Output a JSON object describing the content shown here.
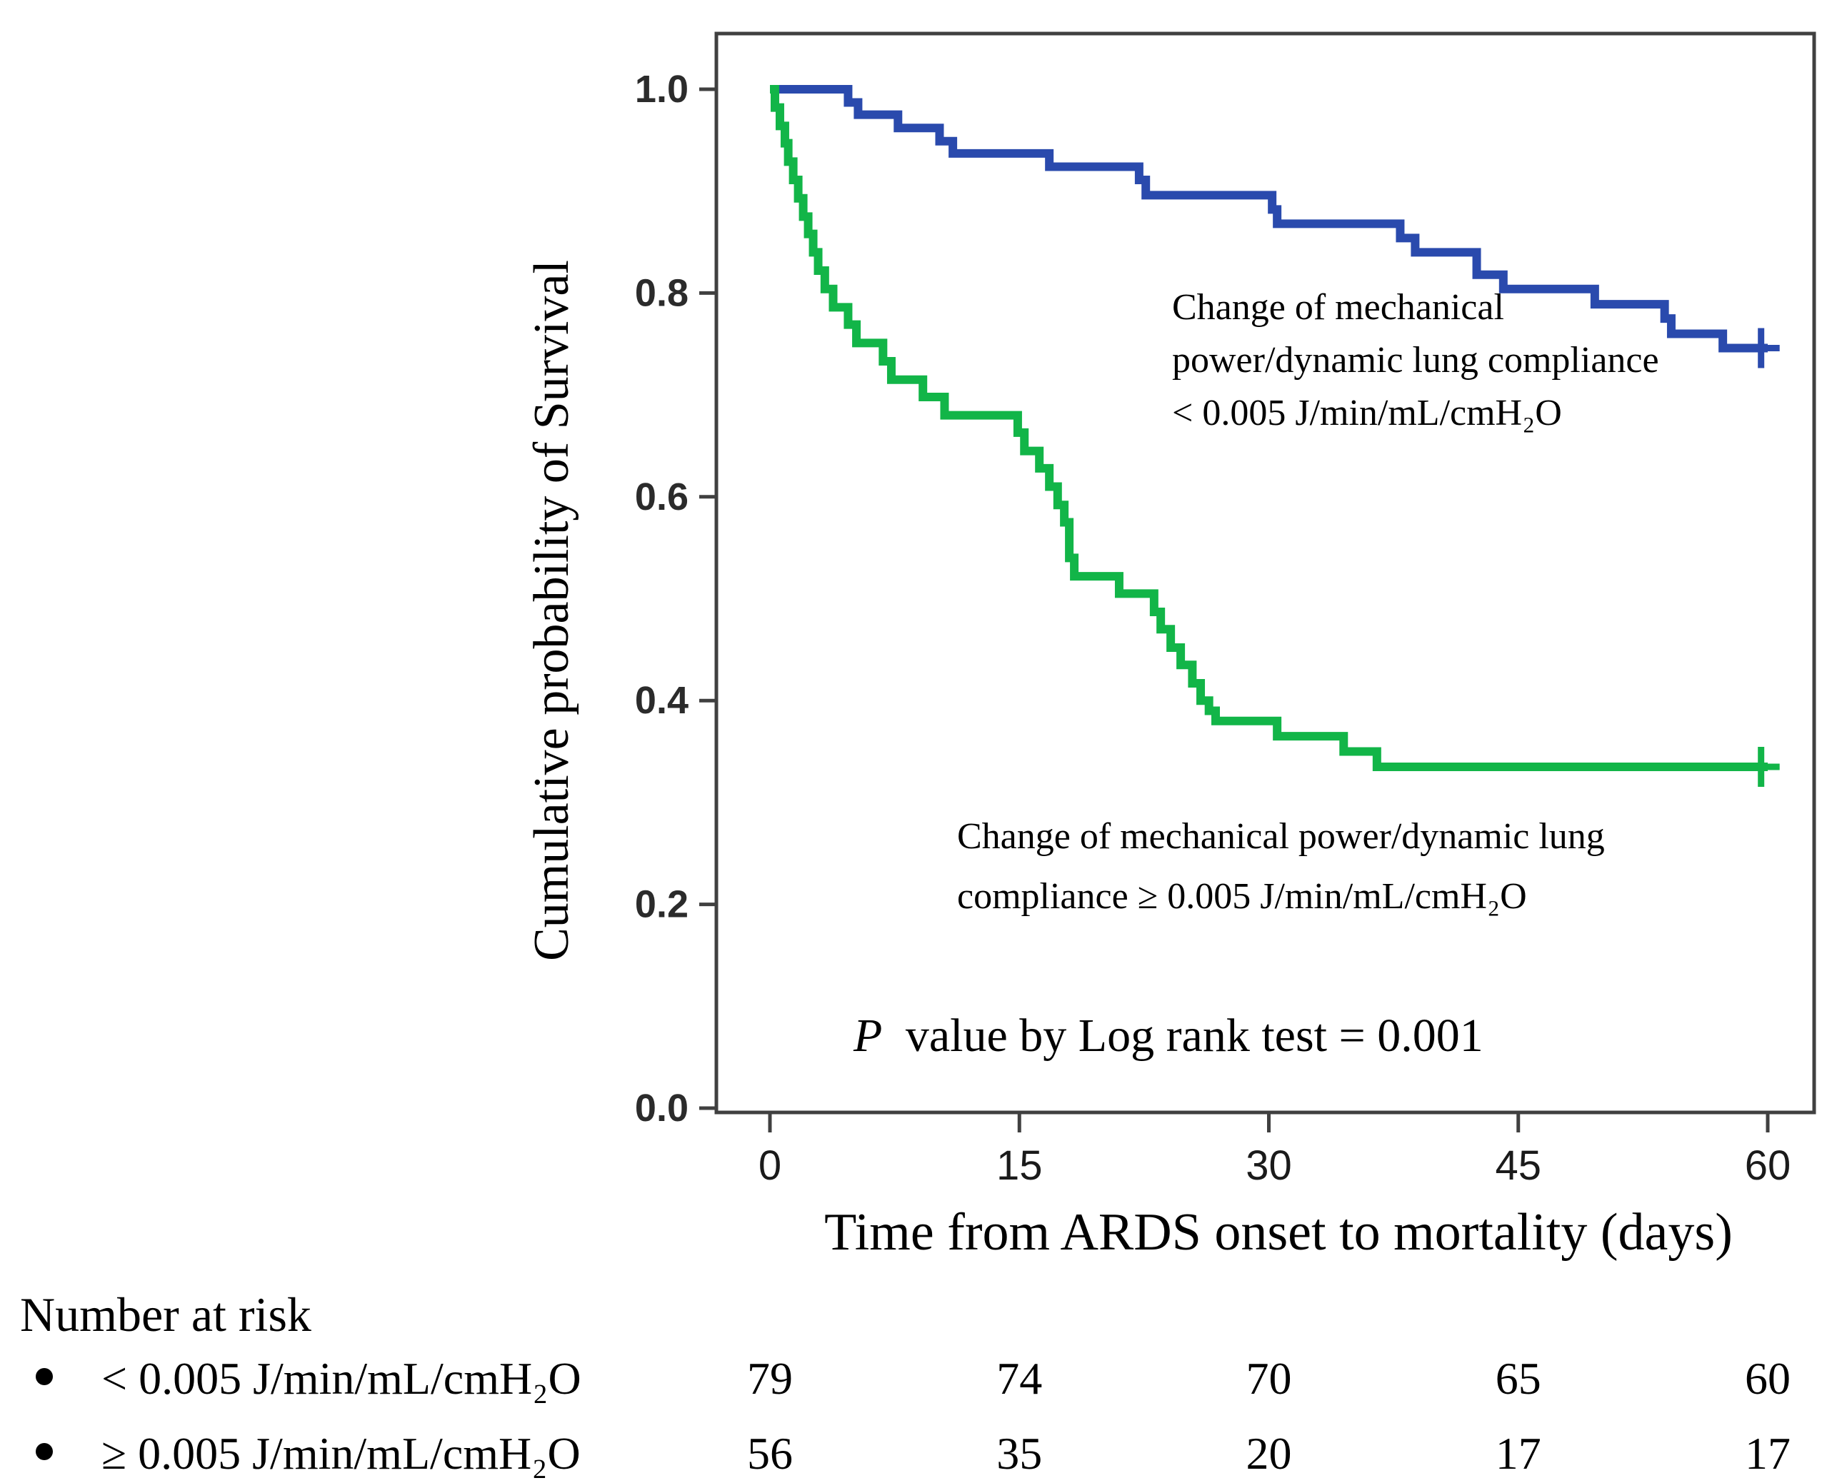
{
  "figure": {
    "y_axis": {
      "title": "Cumulative probability of Survival",
      "tick_labels": [
        "1.0",
        "0.8",
        "0.6",
        "0.4",
        "0.2",
        "0.0"
      ],
      "tick_values": [
        1.0,
        0.8,
        0.6,
        0.4,
        0.2,
        0.0
      ]
    },
    "x_axis": {
      "title": "Time from ARDS onset to mortality (days)",
      "tick_labels": [
        "0",
        "15",
        "30",
        "45",
        "60"
      ],
      "tick_values": [
        0,
        15,
        30,
        45,
        60
      ]
    },
    "annotations": {
      "group_low": {
        "lines": [
          "Change of mechanical",
          "power/dynamic lung compliance",
          "< 0.005 J/min/mL/cmH₂O"
        ]
      },
      "group_high": {
        "lines": [
          "Change of mechanical power/dynamic lung",
          "compliance ≥ 0.005 J/min/mL/cmH₂O"
        ]
      },
      "p_value_italic": "P",
      "p_value_rest": "value by Log rank test = 0.001"
    },
    "colors": {
      "low_group_line": "#2a4aad",
      "high_group_line": "#12b548",
      "axis": "#404040",
      "text": "#000000"
    }
  },
  "chart_data": {
    "type": "line",
    "subtype": "kaplan-meier-step",
    "xlabel": "Time from ARDS onset to mortality (days)",
    "ylabel": "Cumulative probability of Survival",
    "xlim": [
      0,
      60
    ],
    "ylim": [
      0.0,
      1.0
    ],
    "x_ticks": [
      0,
      15,
      30,
      45,
      60
    ],
    "y_ticks": [
      0.0,
      0.2,
      0.4,
      0.6,
      0.8,
      1.0
    ],
    "grid": false,
    "legend_position": "annotated-on-plot",
    "p_value_label": "P value by Log rank test = 0.001",
    "series": [
      {
        "name": "Change of mechanical power/dynamic lung compliance < 0.005 J/min/mL/cmH₂O",
        "color": "#2a4aad",
        "n_start": 79,
        "start": [
          0,
          1.0
        ],
        "steps": [
          [
            4.7,
            0.987
          ],
          [
            5.3,
            0.975
          ],
          [
            7.7,
            0.962
          ],
          [
            10.2,
            0.949
          ],
          [
            11.0,
            0.937
          ],
          [
            16.8,
            0.924
          ],
          [
            22.2,
            0.911
          ],
          [
            22.6,
            0.896
          ],
          [
            30.2,
            0.882
          ],
          [
            30.5,
            0.868
          ],
          [
            37.9,
            0.854
          ],
          [
            38.8,
            0.84
          ],
          [
            42.5,
            0.818
          ],
          [
            44.1,
            0.804
          ],
          [
            49.6,
            0.789
          ],
          [
            53.8,
            0.775
          ],
          [
            54.2,
            0.76
          ],
          [
            57.3,
            0.746
          ]
        ],
        "end_time": 60,
        "censor_time": 59.6
      },
      {
        "name": "Change of mechanical power/dynamic lung compliance ≥ 0.005 J/min/mL/cmH₂O",
        "color": "#12b548",
        "n_start": 56,
        "start": [
          0,
          1.0
        ],
        "steps": [
          [
            0.3,
            0.982
          ],
          [
            0.6,
            0.964
          ],
          [
            0.9,
            0.947
          ],
          [
            1.1,
            0.929
          ],
          [
            1.4,
            0.911
          ],
          [
            1.7,
            0.893
          ],
          [
            2.0,
            0.875
          ],
          [
            2.3,
            0.858
          ],
          [
            2.6,
            0.84
          ],
          [
            2.9,
            0.822
          ],
          [
            3.3,
            0.804
          ],
          [
            3.8,
            0.786
          ],
          [
            4.7,
            0.769
          ],
          [
            5.2,
            0.751
          ],
          [
            6.8,
            0.733
          ],
          [
            7.3,
            0.715
          ],
          [
            9.2,
            0.698
          ],
          [
            10.5,
            0.68
          ],
          [
            14.9,
            0.663
          ],
          [
            15.3,
            0.645
          ],
          [
            16.2,
            0.628
          ],
          [
            16.8,
            0.61
          ],
          [
            17.3,
            0.592
          ],
          [
            17.7,
            0.575
          ],
          [
            18.0,
            0.54
          ],
          [
            18.3,
            0.522
          ],
          [
            21.0,
            0.505
          ],
          [
            23.1,
            0.487
          ],
          [
            23.5,
            0.47
          ],
          [
            24.1,
            0.452
          ],
          [
            24.7,
            0.435
          ],
          [
            25.4,
            0.417
          ],
          [
            25.9,
            0.4
          ],
          [
            26.4,
            0.39
          ],
          [
            26.8,
            0.38
          ],
          [
            30.5,
            0.365
          ],
          [
            34.5,
            0.35
          ],
          [
            36.5,
            0.335
          ]
        ],
        "end_time": 60,
        "censor_time": 59.6
      }
    ],
    "number_at_risk": {
      "heading": "Number at risk",
      "times": [
        0,
        15,
        30,
        45,
        60
      ],
      "rows": [
        {
          "bullet": "•",
          "label": "< 0.005 J/min/mL/cmH₂O",
          "counts": [
            "79",
            "74",
            "70",
            "65",
            "60"
          ]
        },
        {
          "bullet": "•",
          "label": "≥ 0.005 J/min/mL/cmH₂O",
          "counts": [
            "56",
            "35",
            "20",
            "17",
            "17"
          ]
        }
      ]
    }
  }
}
